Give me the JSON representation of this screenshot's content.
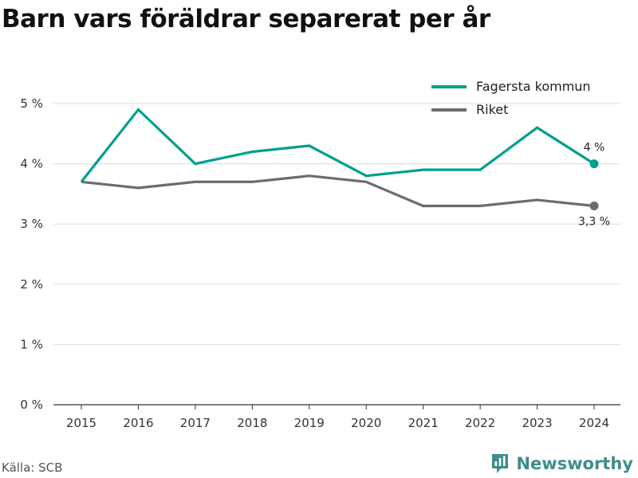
{
  "title": "Barn vars föräldrar separerat per år",
  "source": "Källa: SCB",
  "brand": {
    "name": "Newsworthy",
    "icon": "newsworthy-logo-icon"
  },
  "colors": {
    "fagersta": "#009e8e",
    "riket": "#6b6b72",
    "grid": "#dddddd",
    "brand": "#3f8d8b"
  },
  "chart_data": {
    "type": "line",
    "title": "Barn vars föräldrar separerat per år",
    "xlabel": "",
    "ylabel": "",
    "categories": [
      "2015",
      "2016",
      "2017",
      "2018",
      "2019",
      "2020",
      "2021",
      "2022",
      "2023",
      "2024"
    ],
    "y_ticks": [
      "0 %",
      "1 %",
      "2 %",
      "3 %",
      "4 %",
      "5 %"
    ],
    "ylim": [
      0,
      5
    ],
    "grid": true,
    "legend_position": "top-right",
    "series": [
      {
        "name": "Fagersta kommun",
        "color": "#009e8e",
        "values": [
          3.7,
          4.9,
          4.0,
          4.2,
          4.3,
          3.8,
          3.9,
          3.9,
          4.6,
          4.0
        ],
        "end_label": "4 %"
      },
      {
        "name": "Riket",
        "color": "#6b6b72",
        "values": [
          3.7,
          3.6,
          3.7,
          3.7,
          3.8,
          3.7,
          3.3,
          3.3,
          3.4,
          3.3
        ],
        "end_label": "3,3 %"
      }
    ]
  }
}
